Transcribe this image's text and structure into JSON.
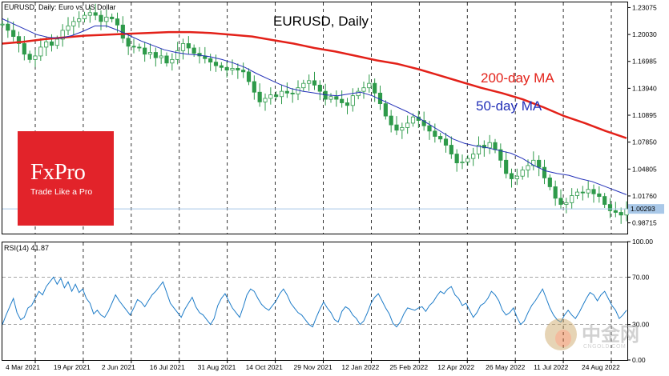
{
  "chart_data": [
    {
      "type": "line",
      "header": "EURUSD, Daily:  Euro vs US Dollar",
      "title": "EURUSD, Daily",
      "y_ticks": [
        "1.23075",
        "1.20030",
        "1.16985",
        "1.13940",
        "1.10895",
        "1.07850",
        "1.04805",
        "1.01760",
        "0.98715"
      ],
      "ylim": [
        0.975,
        1.2375
      ],
      "current_price_label": "1.00293",
      "current_price": 1.00293,
      "x_labels": [
        "4 Mar 2021",
        "19 Apr 2021",
        "2 Jun 2021",
        "16 Jul 2021",
        "31 Aug 2021",
        "14 Oct 2021",
        "29 Nov 2021",
        "12 Jan 2022",
        "25 Feb 2022",
        "12 Apr 2022",
        "26 May 2022",
        "11 Jul 2022",
        "24 Aug 2022"
      ],
      "grid": "vertical dashed",
      "annotations": [
        "200-day MA",
        "50-day MA"
      ],
      "colors": {
        "candles": "#2e9a4a",
        "ma200": "#e32119",
        "ma50": "#2330b8",
        "price_line": "#a9c8e8"
      },
      "series": [
        {
          "name": "EURUSD close",
          "values": [
            1.212,
            1.205,
            1.198,
            1.19,
            1.178,
            1.172,
            1.176,
            1.186,
            1.192,
            1.188,
            1.195,
            1.205,
            1.21,
            1.215,
            1.218,
            1.222,
            1.225,
            1.222,
            1.215,
            1.22,
            1.218,
            1.211,
            1.196,
            1.187,
            1.186,
            1.185,
            1.178,
            1.18,
            1.174,
            1.176,
            1.168,
            1.172,
            1.182,
            1.19,
            1.185,
            1.179,
            1.176,
            1.173,
            1.169,
            1.165,
            1.163,
            1.16,
            1.162,
            1.16,
            1.158,
            1.147,
            1.135,
            1.124,
            1.128,
            1.132,
            1.13,
            1.136,
            1.134,
            1.133,
            1.14,
            1.145,
            1.148,
            1.143,
            1.136,
            1.127,
            1.13,
            1.127,
            1.123,
            1.12,
            1.131,
            1.136,
            1.14,
            1.145,
            1.134,
            1.122,
            1.108,
            1.098,
            1.092,
            1.095,
            1.1,
            1.107,
            1.103,
            1.097,
            1.091,
            1.085,
            1.082,
            1.075,
            1.065,
            1.055,
            1.056,
            1.06,
            1.065,
            1.075,
            1.072,
            1.078,
            1.07,
            1.058,
            1.043,
            1.037,
            1.04,
            1.047,
            1.052,
            1.058,
            1.05,
            1.038,
            1.028,
            1.015,
            1.008,
            1.01,
            1.018,
            1.022,
            1.021,
            1.025,
            1.02,
            1.017,
            1.008,
            1.001,
            0.999,
            0.996,
            1.003
          ]
        },
        {
          "name": "200-day MA",
          "values": [
            1.19,
            1.192,
            1.195,
            1.197,
            1.199,
            1.2,
            1.201,
            1.202,
            1.203,
            1.203,
            1.202,
            1.2,
            1.198,
            1.194,
            1.19,
            1.185,
            1.181,
            1.176,
            1.171,
            1.167,
            1.161,
            1.154,
            1.147,
            1.14,
            1.134,
            1.127,
            1.118,
            1.108,
            1.1,
            1.091,
            1.083
          ]
        },
        {
          "name": "50-day MA",
          "values": [
            1.218,
            1.212,
            1.206,
            1.2,
            1.197,
            1.196,
            1.199,
            1.204,
            1.21,
            1.21,
            1.205,
            1.199,
            1.193,
            1.188,
            1.183,
            1.18,
            1.178,
            1.177,
            1.175,
            1.172,
            1.168,
            1.163,
            1.156,
            1.15,
            1.144,
            1.139,
            1.136,
            1.134,
            1.132,
            1.131,
            1.133,
            1.135,
            1.131,
            1.125,
            1.119,
            1.113,
            1.106,
            1.098,
            1.09,
            1.082,
            1.077,
            1.074,
            1.072,
            1.069,
            1.066,
            1.06,
            1.052,
            1.046,
            1.043,
            1.041,
            1.037,
            1.034,
            1.029,
            1.024,
            1.019
          ]
        }
      ]
    },
    {
      "type": "line",
      "title": "RSI(14) 41.87",
      "y_ticks": [
        "100.00",
        "70.00",
        "30.00",
        "0.00"
      ],
      "ylim": [
        0,
        100
      ],
      "levels": [
        70,
        30
      ],
      "colors": {
        "rsi": "#1e7cc8"
      },
      "series": [
        {
          "name": "RSI(14)",
          "values": [
            30,
            38,
            45,
            52,
            40,
            34,
            36,
            44,
            46,
            52,
            58,
            55,
            62,
            66,
            70,
            64,
            69,
            61,
            66,
            58,
            64,
            57,
            60,
            52,
            48,
            39,
            42,
            38,
            36,
            41,
            48,
            55,
            50,
            46,
            42,
            38,
            44,
            51,
            49,
            45,
            50,
            55,
            58,
            62,
            66,
            57,
            48,
            44,
            40,
            36,
            43,
            48,
            53,
            45,
            40,
            38,
            34,
            30,
            35,
            46,
            52,
            56,
            50,
            44,
            40,
            36,
            45,
            55,
            60,
            58,
            52,
            47,
            44,
            42,
            46,
            50,
            56,
            60,
            55,
            48,
            44,
            40,
            38,
            34,
            30,
            28,
            36,
            43,
            49,
            44,
            40,
            34,
            32,
            41,
            45,
            43,
            38,
            35,
            30,
            33,
            40,
            48,
            53,
            56,
            50,
            44,
            39,
            31,
            28,
            32,
            39,
            44,
            43,
            42,
            44,
            45,
            41,
            46,
            49,
            54,
            58,
            56,
            60,
            62,
            55,
            52,
            46,
            48,
            42,
            36,
            40,
            46,
            48,
            52,
            58,
            55,
            50,
            42,
            38,
            40,
            44,
            36,
            30,
            33,
            40,
            46,
            50,
            55,
            60,
            52,
            44,
            38,
            34,
            32,
            38,
            42,
            38,
            35,
            40,
            46,
            52,
            57,
            55,
            50,
            55,
            58,
            52,
            46,
            42,
            35,
            38,
            42
          ]
        }
      ]
    }
  ],
  "logo": {
    "name": "FxPro",
    "slogan": "Trade Like a Pro"
  },
  "watermark": {
    "text": "中金网",
    "sub": "CNGOLD.COM"
  }
}
